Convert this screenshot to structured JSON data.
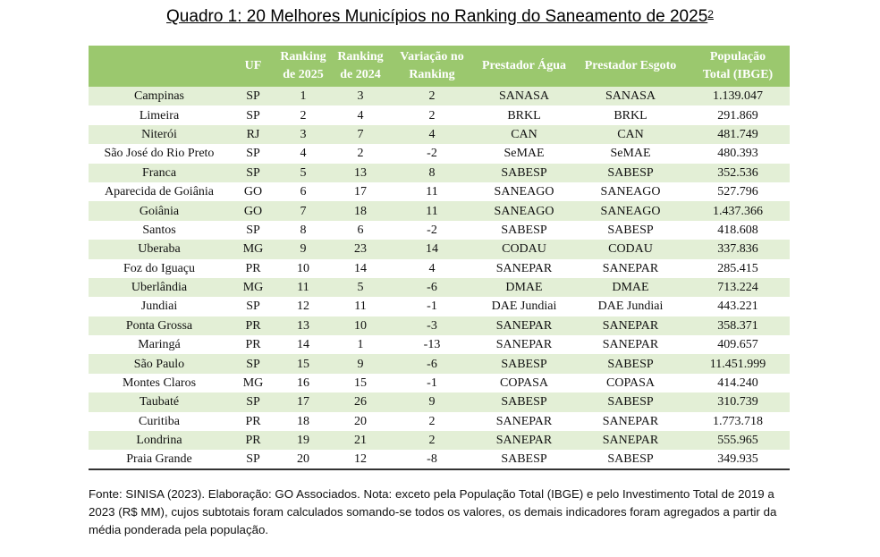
{
  "title": "Quadro 1: 20 Melhores Municípios no Ranking do Saneamento de 2025",
  "title_sup": "2",
  "headers": {
    "municipio": "",
    "uf": "UF",
    "rank2025_l1": "Ranking",
    "rank2025_l2": "de 2025",
    "rank2024_l1": "Ranking",
    "rank2024_l2": "de 2024",
    "variacao_l1": "Variação no",
    "variacao_l2": "Ranking",
    "agua": "Prestador Água",
    "esgoto": "Prestador Esgoto",
    "pop_l1": "População",
    "pop_l2": "Total (IBGE)"
  },
  "rows": [
    {
      "municipio": "Campinas",
      "uf": "SP",
      "r2025": "1",
      "r2024": "3",
      "var": "2",
      "agua": "SANASA",
      "esgoto": "SANASA",
      "pop": "1.139.047"
    },
    {
      "municipio": "Limeira",
      "uf": "SP",
      "r2025": "2",
      "r2024": "4",
      "var": "2",
      "agua": "BRKL",
      "esgoto": "BRKL",
      "pop": "291.869"
    },
    {
      "municipio": "Niterói",
      "uf": "RJ",
      "r2025": "3",
      "r2024": "7",
      "var": "4",
      "agua": "CAN",
      "esgoto": "CAN",
      "pop": "481.749"
    },
    {
      "municipio": "São José do Rio Preto",
      "uf": "SP",
      "r2025": "4",
      "r2024": "2",
      "var": "-2",
      "agua": "SeMAE",
      "esgoto": "SeMAE",
      "pop": "480.393"
    },
    {
      "municipio": "Franca",
      "uf": "SP",
      "r2025": "5",
      "r2024": "13",
      "var": "8",
      "agua": "SABESP",
      "esgoto": "SABESP",
      "pop": "352.536"
    },
    {
      "municipio": "Aparecida de Goiânia",
      "uf": "GO",
      "r2025": "6",
      "r2024": "17",
      "var": "11",
      "agua": "SANEAGO",
      "esgoto": "SANEAGO",
      "pop": "527.796"
    },
    {
      "municipio": "Goiânia",
      "uf": "GO",
      "r2025": "7",
      "r2024": "18",
      "var": "11",
      "agua": "SANEAGO",
      "esgoto": "SANEAGO",
      "pop": "1.437.366"
    },
    {
      "municipio": "Santos",
      "uf": "SP",
      "r2025": "8",
      "r2024": "6",
      "var": "-2",
      "agua": "SABESP",
      "esgoto": "SABESP",
      "pop": "418.608"
    },
    {
      "municipio": "Uberaba",
      "uf": "MG",
      "r2025": "9",
      "r2024": "23",
      "var": "14",
      "agua": "CODAU",
      "esgoto": "CODAU",
      "pop": "337.836"
    },
    {
      "municipio": "Foz do Iguaçu",
      "uf": "PR",
      "r2025": "10",
      "r2024": "14",
      "var": "4",
      "agua": "SANEPAR",
      "esgoto": "SANEPAR",
      "pop": "285.415"
    },
    {
      "municipio": "Uberlândia",
      "uf": "MG",
      "r2025": "11",
      "r2024": "5",
      "var": "-6",
      "agua": "DMAE",
      "esgoto": "DMAE",
      "pop": "713.224"
    },
    {
      "municipio": "Jundiai",
      "uf": "SP",
      "r2025": "12",
      "r2024": "11",
      "var": "-1",
      "agua": "DAE Jundiai",
      "esgoto": "DAE Jundiai",
      "pop": "443.221"
    },
    {
      "municipio": "Ponta Grossa",
      "uf": "PR",
      "r2025": "13",
      "r2024": "10",
      "var": "-3",
      "agua": "SANEPAR",
      "esgoto": "SANEPAR",
      "pop": "358.371"
    },
    {
      "municipio": "Maringá",
      "uf": "PR",
      "r2025": "14",
      "r2024": "1",
      "var": "-13",
      "agua": "SANEPAR",
      "esgoto": "SANEPAR",
      "pop": "409.657"
    },
    {
      "municipio": "São Paulo",
      "uf": "SP",
      "r2025": "15",
      "r2024": "9",
      "var": "-6",
      "agua": "SABESP",
      "esgoto": "SABESP",
      "pop": "11.451.999"
    },
    {
      "municipio": "Montes Claros",
      "uf": "MG",
      "r2025": "16",
      "r2024": "15",
      "var": "-1",
      "agua": "COPASA",
      "esgoto": "COPASA",
      "pop": "414.240"
    },
    {
      "municipio": "Taubaté",
      "uf": "SP",
      "r2025": "17",
      "r2024": "26",
      "var": "9",
      "agua": "SABESP",
      "esgoto": "SABESP",
      "pop": "310.739"
    },
    {
      "municipio": "Curitiba",
      "uf": "PR",
      "r2025": "18",
      "r2024": "20",
      "var": "2",
      "agua": "SANEPAR",
      "esgoto": "SANEPAR",
      "pop": "1.773.718"
    },
    {
      "municipio": "Londrina",
      "uf": "PR",
      "r2025": "19",
      "r2024": "21",
      "var": "2",
      "agua": "SANEPAR",
      "esgoto": "SANEPAR",
      "pop": "555.965"
    },
    {
      "municipio": "Praia Grande",
      "uf": "SP",
      "r2025": "20",
      "r2024": "12",
      "var": "-8",
      "agua": "SABESP",
      "esgoto": "SABESP",
      "pop": "349.935"
    }
  ],
  "footnote": "Fonte: SINISA (2023). Elaboração: GO Associados. Nota: exceto pela População Total (IBGE) e pelo Investimento Total de 2019 a 2023 (R$ MM), cujos subtotais foram calculados somando-se todos os valores, os demais indicadores foram agregados a partir da média ponderada pela população.",
  "colors": {
    "header_bg": "#9bc86e",
    "stripe": "#e3efd6"
  }
}
